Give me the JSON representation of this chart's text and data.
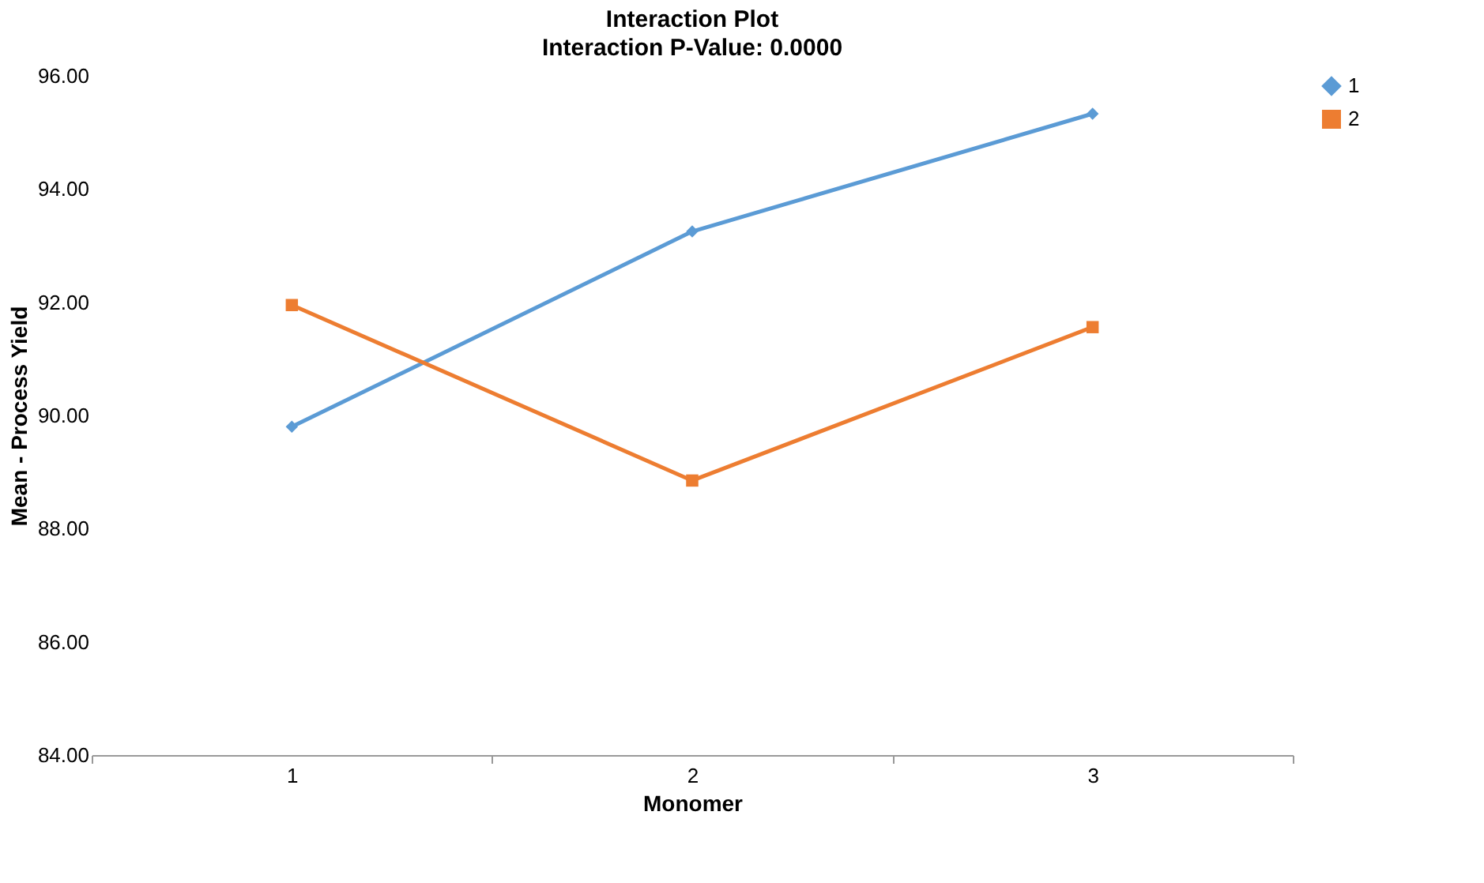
{
  "chart_data": {
    "type": "line",
    "title": "Interaction Plot",
    "subtitle": "Interaction P-Value: 0.0000",
    "xlabel": "Monomer",
    "ylabel": "Mean - Process Yield",
    "categories": [
      "1",
      "2",
      "3"
    ],
    "series": [
      {
        "name": "1",
        "color": "#5b9bd5",
        "marker": "diamond",
        "values": [
          89.8,
          93.25,
          95.33
        ]
      },
      {
        "name": "2",
        "color": "#ed7d31",
        "marker": "square",
        "values": [
          91.95,
          88.85,
          91.56
        ]
      }
    ],
    "ylim": [
      84,
      96
    ],
    "yticks": [
      {
        "value": 84,
        "label": "84.00"
      },
      {
        "value": 86,
        "label": "86.00"
      },
      {
        "value": 88,
        "label": "88.00"
      },
      {
        "value": 90,
        "label": "90.00"
      },
      {
        "value": 92,
        "label": "92.00"
      },
      {
        "value": 94,
        "label": "94.00"
      },
      {
        "value": 96,
        "label": "96.00"
      }
    ],
    "grid": false,
    "legend": "right",
    "line_style": "solid"
  }
}
